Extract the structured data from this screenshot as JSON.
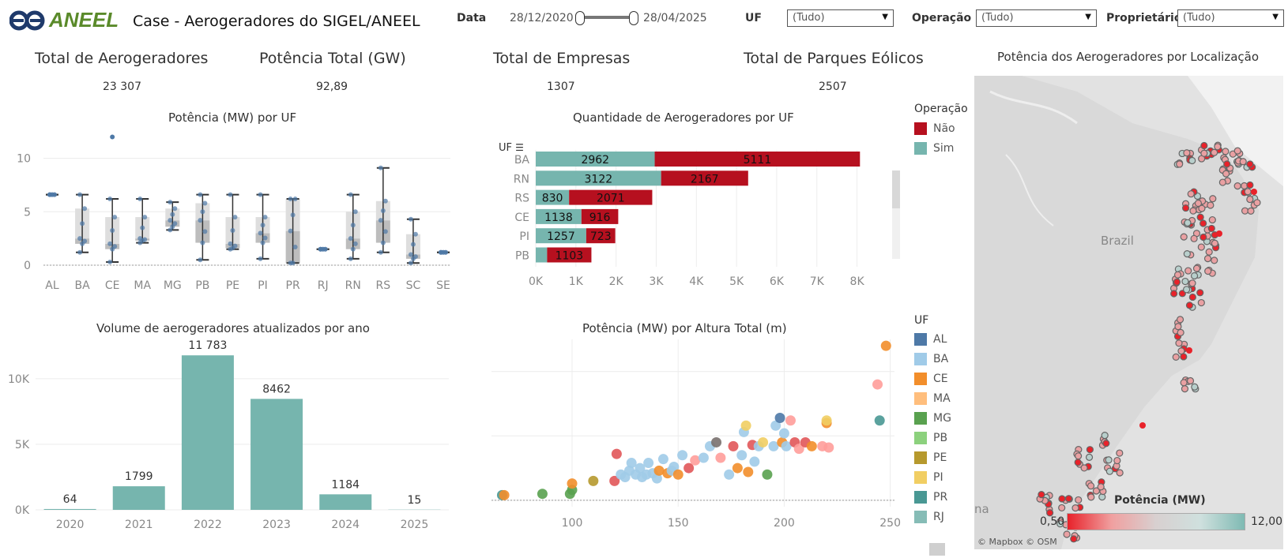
{
  "header": {
    "logo_text": "ANEEL",
    "title": "Case - Aerogeradores do SIGEL/ANEEL"
  },
  "filters": {
    "data_label": "Data",
    "date_start": "28/12/2020",
    "date_end": "28/04/2025",
    "uf_label": "UF",
    "uf_value": "(Tudo)",
    "operacao_label": "Operação",
    "operacao_value": "(Tudo)",
    "proprietario_label": "Proprietário",
    "proprietario_value": "(Tudo)"
  },
  "kpis": [
    {
      "label": "Total de Aerogeradores",
      "value": "23 307"
    },
    {
      "label": "Potência Total (GW)",
      "value": "92,89"
    },
    {
      "label": "Total de Empresas",
      "value": "1307"
    },
    {
      "label": "Total de Parques Eólicos",
      "value": "2507"
    }
  ],
  "colors": {
    "teal": "#76b5ae",
    "red": "#b6101f",
    "box_dark": "#2e2e2e",
    "dot_blue": "#4e79a7"
  },
  "legend_operacao": {
    "title": "Operação",
    "items": [
      {
        "label": "Não",
        "color": "#b6101f"
      },
      {
        "label": "Sim",
        "color": "#76b5ae"
      }
    ]
  },
  "legend_uf": {
    "title": "UF",
    "items": [
      {
        "label": "AL",
        "color": "#4e79a7"
      },
      {
        "label": "BA",
        "color": "#a0cbe8"
      },
      {
        "label": "CE",
        "color": "#f28e2b"
      },
      {
        "label": "MA",
        "color": "#ffbe7d"
      },
      {
        "label": "MG",
        "color": "#59a14f"
      },
      {
        "label": "PB",
        "color": "#8cd17d"
      },
      {
        "label": "PE",
        "color": "#b6992d"
      },
      {
        "label": "PI",
        "color": "#f1ce63"
      },
      {
        "label": "PR",
        "color": "#499894"
      },
      {
        "label": "RJ",
        "color": "#86bcb6"
      }
    ]
  },
  "map": {
    "title": "Potência dos Aerogeradores por Localização",
    "country_label": "Brazil",
    "partial_label": "na",
    "legend_title": "Potência (MW)",
    "legend_min": "0,50",
    "legend_max": "12,00",
    "credit": "© Mapbox  © OSM"
  },
  "chart_data": [
    {
      "id": "box",
      "type": "box",
      "title": "Potência (MW) por UF",
      "categories": [
        "AL",
        "BA",
        "CE",
        "MA",
        "MG",
        "PB",
        "PE",
        "PI",
        "PR",
        "RJ",
        "RN",
        "RS",
        "SC",
        "SE"
      ],
      "boxes": [
        {
          "min": 6.6,
          "q1": 6.6,
          "median": 6.6,
          "q3": 6.6,
          "max": 6.6
        },
        {
          "min": 1.2,
          "q1": 2.0,
          "median": 2.5,
          "q3": 5.3,
          "max": 6.6
        },
        {
          "min": 0.3,
          "q1": 1.5,
          "median": 2.0,
          "q3": 4.5,
          "max": 6.2
        },
        {
          "min": 2.1,
          "q1": 2.3,
          "median": 2.5,
          "q3": 4.5,
          "max": 6.2
        },
        {
          "min": 3.3,
          "q1": 3.6,
          "median": 4.2,
          "q3": 5.3,
          "max": 5.9
        },
        {
          "min": 0.5,
          "q1": 2.1,
          "median": 4.2,
          "q3": 5.8,
          "max": 6.6
        },
        {
          "min": 1.5,
          "q1": 1.6,
          "median": 2.0,
          "q3": 4.5,
          "max": 6.6
        },
        {
          "min": 0.6,
          "q1": 2.1,
          "median": 3.0,
          "q3": 4.5,
          "max": 6.6
        },
        {
          "min": 0.2,
          "q1": 0.2,
          "median": 3.2,
          "q3": 6.2,
          "max": 6.2
        },
        {
          "min": 1.5,
          "q1": 1.5,
          "median": 1.5,
          "q3": 1.5,
          "max": 1.5
        },
        {
          "min": 0.6,
          "q1": 1.5,
          "median": 2.5,
          "q3": 5.0,
          "max": 6.6
        },
        {
          "min": 1.2,
          "q1": 2.1,
          "median": 4.2,
          "q3": 6.0,
          "max": 9.1
        },
        {
          "min": 0.2,
          "q1": 0.6,
          "median": 1.0,
          "q3": 2.9,
          "max": 4.3
        },
        {
          "min": 1.2,
          "q1": 1.2,
          "median": 1.2,
          "q3": 1.2,
          "max": 1.2
        }
      ],
      "outliers": [
        {
          "category": "CE",
          "value": 12.0
        }
      ],
      "ylim": [
        0,
        13
      ],
      "yticks": [
        0,
        5,
        10
      ]
    },
    {
      "id": "hbar",
      "type": "bar",
      "title": "Quantidade de Aerogeradores por UF",
      "ylabel": "UF",
      "categories": [
        "BA",
        "RN",
        "RS",
        "CE",
        "PI",
        "PB"
      ],
      "series": [
        {
          "name": "Sim",
          "values": [
            2962,
            3122,
            830,
            1138,
            1257,
            283
          ]
        },
        {
          "name": "Não",
          "values": [
            5111,
            2167,
            2071,
            916,
            723,
            1103
          ]
        }
      ],
      "xlim": [
        0,
        8500
      ],
      "xticks": [
        "0K",
        "1K",
        "2K",
        "3K",
        "4K",
        "5K",
        "6K",
        "7K",
        "8K"
      ]
    },
    {
      "id": "vbar",
      "type": "bar",
      "title": "Volume de aerogeradores atualizados por ano",
      "categories": [
        "2020",
        "2021",
        "2022",
        "2023",
        "2024",
        "2025"
      ],
      "values": [
        64,
        1799,
        11783,
        8462,
        1184,
        15
      ],
      "labels": [
        "64",
        "1799",
        "11 783",
        "8462",
        "1184",
        "15"
      ],
      "ylim": [
        0,
        13000
      ],
      "yticks": [
        "0K",
        "5K",
        "10K"
      ]
    },
    {
      "id": "scatter",
      "type": "scatter",
      "title": "Potência (MW) por Altura Total (m)",
      "xlim": [
        62,
        252
      ],
      "ylim": [
        -0.5,
        12.5
      ],
      "xticks": [
        100,
        150,
        200,
        250
      ],
      "yticks": [
        0,
        5,
        10
      ],
      "points": [
        [
          67,
          0.4,
          "#499894"
        ],
        [
          68,
          0.4,
          "#f28e2b"
        ],
        [
          86,
          0.5,
          "#59a14f"
        ],
        [
          99,
          0.5,
          "#59a14f"
        ],
        [
          100,
          0.8,
          "#59a14f"
        ],
        [
          100,
          1.3,
          "#f28e2b"
        ],
        [
          110,
          1.5,
          "#b6992d"
        ],
        [
          120,
          1.5,
          "#e15759"
        ],
        [
          121,
          3.6,
          "#e15759"
        ],
        [
          123,
          2.0,
          "#a0cbe8"
        ],
        [
          125,
          1.8,
          "#a0cbe8"
        ],
        [
          127,
          2.3,
          "#a0cbe8"
        ],
        [
          128,
          2.9,
          "#a0cbe8"
        ],
        [
          130,
          2.0,
          "#a0cbe8"
        ],
        [
          132,
          2.5,
          "#a0cbe8"
        ],
        [
          133,
          1.8,
          "#a0cbe8"
        ],
        [
          135,
          2.0,
          "#a0cbe8"
        ],
        [
          136,
          2.9,
          "#a0cbe8"
        ],
        [
          138,
          2.1,
          "#a0cbe8"
        ],
        [
          140,
          1.7,
          "#a0cbe8"
        ],
        [
          141,
          2.3,
          "#f28e2b"
        ],
        [
          143,
          3.2,
          "#a0cbe8"
        ],
        [
          145,
          2.1,
          "#f28e2b"
        ],
        [
          147,
          2.3,
          "#a0cbe8"
        ],
        [
          148,
          2.6,
          "#a0cbe8"
        ],
        [
          150,
          2.0,
          "#f28e2b"
        ],
        [
          152,
          3.5,
          "#a0cbe8"
        ],
        [
          155,
          2.5,
          "#e15759"
        ],
        [
          158,
          3.1,
          "#ff9d9a"
        ],
        [
          162,
          3.3,
          "#a0cbe8"
        ],
        [
          165,
          4.2,
          "#a0cbe8"
        ],
        [
          168,
          4.5,
          "#79706e"
        ],
        [
          170,
          3.3,
          "#ff9d9a"
        ],
        [
          174,
          2.0,
          "#a0cbe8"
        ],
        [
          176,
          4.2,
          "#e15759"
        ],
        [
          178,
          2.5,
          "#f28e2b"
        ],
        [
          180,
          3.5,
          "#a0cbe8"
        ],
        [
          181,
          5.3,
          "#a0cbe8"
        ],
        [
          182,
          5.8,
          "#f1ce63"
        ],
        [
          183,
          2.2,
          "#f28e2b"
        ],
        [
          185,
          4.3,
          "#e15759"
        ],
        [
          186,
          3.0,
          "#a0cbe8"
        ],
        [
          188,
          4.2,
          "#a0cbe8"
        ],
        [
          190,
          4.5,
          "#f1ce63"
        ],
        [
          192,
          2.0,
          "#59a14f"
        ],
        [
          195,
          4.2,
          "#a0cbe8"
        ],
        [
          196,
          5.8,
          "#a0cbe8"
        ],
        [
          198,
          6.4,
          "#4e79a7"
        ],
        [
          199,
          4.5,
          "#f28e2b"
        ],
        [
          200,
          5.2,
          "#a0cbe8"
        ],
        [
          201,
          4.2,
          "#a0cbe8"
        ],
        [
          203,
          6.2,
          "#ff9d9a"
        ],
        [
          205,
          4.5,
          "#e15759"
        ],
        [
          207,
          4.0,
          "#ff9d9a"
        ],
        [
          210,
          4.5,
          "#e15759"
        ],
        [
          213,
          4.2,
          "#f28e2b"
        ],
        [
          218,
          4.2,
          "#ff9d9a"
        ],
        [
          220,
          6.0,
          "#f28e2b"
        ],
        [
          220,
          6.2,
          "#f1ce63"
        ],
        [
          221,
          4.1,
          "#ff9d9a"
        ],
        [
          244,
          9.0,
          "#ff9d9a"
        ],
        [
          245,
          6.2,
          "#499894"
        ],
        [
          248,
          12.0,
          "#f28e2b"
        ]
      ]
    }
  ]
}
